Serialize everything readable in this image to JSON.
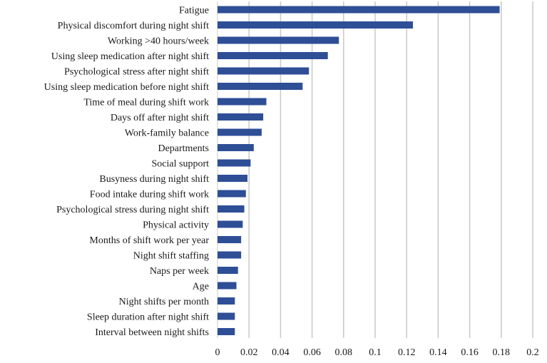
{
  "chart_data": {
    "type": "bar",
    "orientation": "horizontal",
    "title": "",
    "xlabel": "",
    "ylabel": "",
    "xlim": [
      0,
      0.2
    ],
    "xticks": [
      "0",
      "0.02",
      "0.04",
      "0.06",
      "0.08",
      "0.1",
      "0.12",
      "0.14",
      "0.16",
      "0.18",
      "0.2"
    ],
    "grid": "vertical",
    "bar_color": "#2e4e96",
    "grid_color": "#c8c8c8",
    "categories": [
      "Fatigue",
      "Physical discomfort during night shift",
      "Working >40 hours/week",
      "Using sleep medication after night shift",
      "Psychological stress after night shift",
      "Using sleep medication before night shift",
      "Time of meal during shift work",
      "Days off after night shift",
      "Work-family balance",
      "Departments",
      "Social support",
      "Busyness during night shift",
      "Food intake during shift work",
      "Psychological stress during night shift",
      "Physical activity",
      "Months of shift work per year",
      "Night shift staffing",
      "Naps per week",
      "Age",
      "Night shifts per month",
      "Sleep duration after night shift",
      "Interval between night shifts"
    ],
    "values": [
      0.179,
      0.124,
      0.077,
      0.07,
      0.058,
      0.054,
      0.031,
      0.029,
      0.028,
      0.023,
      0.021,
      0.019,
      0.018,
      0.017,
      0.016,
      0.015,
      0.015,
      0.013,
      0.012,
      0.011,
      0.011,
      0.011
    ]
  }
}
